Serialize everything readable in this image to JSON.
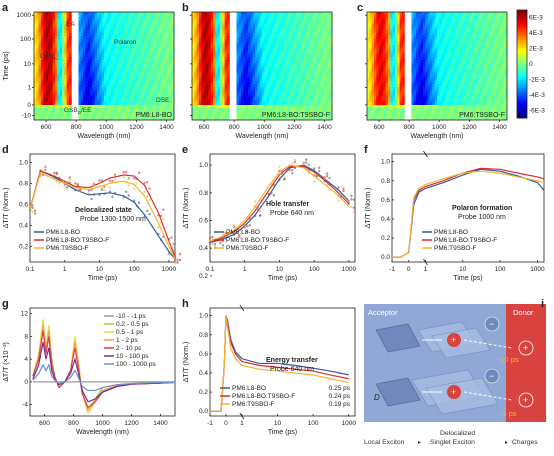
{
  "panels": {
    "a": {
      "label": "a",
      "sample": "PM6:L8-BO",
      "features": {
        "gsb_a": "GSB",
        "gsb_a_sub": "A",
        "ea": "EA",
        "gsb_d": "GSB",
        "gsb_d_sub": "D",
        "ee": "EE",
        "polaron": "Polaron",
        "dse": "DSE"
      },
      "ylabel": "Time (ps)",
      "xlabel": "Wavelength (nm)",
      "xticks": [
        "600",
        "800",
        "1000",
        "1200",
        "1400"
      ],
      "yticks": [
        "1000",
        "100",
        "10",
        "1",
        "0",
        "-10"
      ]
    },
    "b": {
      "label": "b",
      "sample": "PM6:L8-BO:T9SBO-F",
      "xlabel": "Wavelength (nm)",
      "xticks": [
        "600",
        "800",
        "1000",
        "1200",
        "1400"
      ],
      "yticks": [
        "1000",
        "100",
        "10",
        "1",
        "0",
        "-10"
      ]
    },
    "c": {
      "label": "c",
      "sample": "PM6:T9SBO-F",
      "xlabel": "Wavelength (nm)",
      "xticks": [
        "600",
        "800",
        "1000",
        "1200",
        "1400"
      ],
      "yticks": [
        "1000",
        "100",
        "10",
        "1",
        "0",
        "-10"
      ]
    },
    "colorbar": {
      "ticks": [
        "6E-3",
        "4E-3",
        "2E-3",
        "0",
        "-2E-3",
        "-4E-3",
        "-6E-3"
      ]
    },
    "d": {
      "label": "d",
      "ylabel": "ΔT/T (Norm.)",
      "xlabel": "Time (ps)",
      "title": "Delocalized state",
      "subtitle": "Probe 1300-1500 nm",
      "xticks": [
        "0.1",
        "1",
        "10",
        "100",
        "1000"
      ],
      "yticks": [
        "0.2",
        "0.4",
        "0.6",
        "0.8",
        "1.0"
      ],
      "legend": [
        "PM6:L8-BO",
        "PM6:L8-BO:T9SBO-F",
        "PM6:T9SBO-F"
      ]
    },
    "e": {
      "label": "e",
      "ylabel": "ΔT/T (Norm.)",
      "xlabel": "Time (ps)",
      "title": "Hole transfer",
      "subtitle": "Probe 640 nm",
      "xticks": [
        "0.1",
        "1",
        "10",
        "100",
        "1000"
      ],
      "yticks": [
        "0.2",
        "0.4",
        "0.6",
        "0.8",
        "1.0"
      ],
      "legend": [
        "PM6:L8-BO",
        "PM6:L8-BO:T9SBO-F",
        "PM6:T9SBO-F"
      ]
    },
    "f": {
      "label": "f",
      "ylabel": "ΔT/T (Norm.)",
      "xlabel": "Time (ps)",
      "title": "Polaron formation",
      "subtitle": "Probe 1000 nm",
      "xticks": [
        "-1",
        "0",
        "1",
        "10",
        "100",
        "1000"
      ],
      "yticks": [
        "0.0",
        "0.2",
        "0.4",
        "0.6",
        "0.8",
        "1.0"
      ],
      "legend": [
        "PM6:L8-BO",
        "PM6:L8-BO:T9SBO-F",
        "PM6:T9SBO-F"
      ]
    },
    "g": {
      "label": "g",
      "ylabel": "ΔT/T (×10⁻³)",
      "xlabel": "Wavelength (nm)",
      "xticks": [
        "600",
        "800",
        "1000",
        "1200",
        "1400"
      ],
      "yticks": [
        "-4",
        "0",
        "4",
        "8",
        "12"
      ],
      "legend": [
        "-10 - -1 ps",
        "0.2 - 0.5 ps",
        "0.5 - 1 ps",
        "1 - 2 ps",
        "2 - 10 ps",
        "10 - 100 ps",
        "100 - 1000 ps"
      ]
    },
    "h": {
      "label": "h",
      "ylabel": "ΔT/T (Norm.)",
      "xlabel": "Time (ps)",
      "title": "Energy transfer",
      "subtitle": "Probe 640 nm",
      "xticks": [
        "-1",
        "0",
        "1",
        "10",
        "100",
        "1000"
      ],
      "yticks": [
        "0.0",
        "0.2",
        "0.4",
        "0.6",
        "0.8",
        "1.0"
      ],
      "legend": [
        {
          "name": "PM6:L8-BO",
          "tau": "0.25 ps"
        },
        {
          "name": "PM6:L8-BO:T9SBO-F",
          "tau": "0.24 ps"
        },
        {
          "name": "PM6:T9SBO-F",
          "tau": "0.19 ps"
        }
      ]
    },
    "i": {
      "label": "i",
      "acceptor": "Acceptor",
      "donor": "Donor",
      "t_top": "~10 ps",
      "t_bot": "~5 ps",
      "d_label": "D",
      "bottom": [
        "Local Exciton",
        "Delocalized Singlet Exciton",
        "Charges"
      ]
    }
  },
  "colors": {
    "s1": "#2f5d9a",
    "s2": "#d62c3a",
    "s3": "#f2b632",
    "g": [
      "#9a9a9a",
      "#a6c94b",
      "#e7d94a",
      "#f4a545",
      "#d9434b",
      "#7a2a8a",
      "#6f8fcc"
    ]
  },
  "chart_data": [
    {
      "type": "line",
      "panel": "d",
      "x": [
        0.1,
        0.2,
        0.5,
        1,
        2,
        5,
        10,
        20,
        50,
        100,
        200,
        500,
        1000,
        1500
      ],
      "series": [
        {
          "name": "PM6:L8-BO",
          "values": [
            0.55,
            0.92,
            0.86,
            0.8,
            0.74,
            0.69,
            0.7,
            0.71,
            0.68,
            0.62,
            0.5,
            0.3,
            0.15,
            0.08
          ]
        },
        {
          "name": "PM6:L8-BO:T9SBO-F",
          "values": [
            0.55,
            0.92,
            0.87,
            0.82,
            0.77,
            0.76,
            0.8,
            0.85,
            0.88,
            0.87,
            0.78,
            0.52,
            0.25,
            0.1
          ]
        },
        {
          "name": "PM6:T9SBO-F",
          "values": [
            0.55,
            0.9,
            0.84,
            0.8,
            0.76,
            0.74,
            0.77,
            0.8,
            0.82,
            0.79,
            0.68,
            0.42,
            0.2,
            0.08
          ]
        }
      ],
      "xscale": "log"
    },
    {
      "type": "line",
      "panel": "e",
      "x": [
        0.1,
        0.2,
        0.5,
        1,
        2,
        5,
        10,
        20,
        50,
        100,
        200,
        500,
        1000
      ],
      "series": [
        {
          "name": "PM6:L8-BO",
          "values": [
            0.44,
            0.46,
            0.5,
            0.56,
            0.64,
            0.78,
            0.9,
            0.98,
            1.0,
            0.96,
            0.9,
            0.82,
            0.74
          ]
        },
        {
          "name": "PM6:L8-BO:T9SBO-F",
          "values": [
            0.44,
            0.47,
            0.52,
            0.58,
            0.67,
            0.82,
            0.93,
            0.99,
            0.99,
            0.95,
            0.89,
            0.8,
            0.72
          ]
        },
        {
          "name": "PM6:T9SBO-F",
          "values": [
            0.45,
            0.48,
            0.53,
            0.6,
            0.7,
            0.85,
            0.95,
            1.0,
            0.98,
            0.92,
            0.86,
            0.78,
            0.7
          ]
        }
      ],
      "xscale": "log"
    },
    {
      "type": "line",
      "panel": "f",
      "x": [
        -1,
        -0.5,
        0,
        0.3,
        0.6,
        1,
        3,
        10,
        30,
        100,
        300,
        1000,
        1500
      ],
      "series": [
        {
          "name": "PM6:L8-BO",
          "values": [
            0.0,
            0.0,
            0.05,
            0.55,
            0.68,
            0.72,
            0.78,
            0.86,
            0.92,
            0.9,
            0.85,
            0.78,
            0.7
          ]
        },
        {
          "name": "PM6:L8-BO:T9SBO-F",
          "values": [
            0.0,
            0.0,
            0.05,
            0.6,
            0.7,
            0.74,
            0.8,
            0.88,
            0.93,
            0.92,
            0.88,
            0.84,
            0.82
          ]
        },
        {
          "name": "PM6:T9SBO-F",
          "values": [
            0.0,
            0.0,
            0.05,
            0.62,
            0.72,
            0.76,
            0.82,
            0.88,
            0.9,
            0.88,
            0.84,
            0.8,
            0.78
          ]
        }
      ],
      "xscale": "split-log"
    },
    {
      "type": "line",
      "panel": "g",
      "x": [
        520,
        560,
        590,
        610,
        630,
        650,
        670,
        700,
        740,
        780,
        810,
        830,
        860,
        900,
        950,
        1000,
        1100,
        1200,
        1300,
        1400,
        1500
      ],
      "series": [
        {
          "name": "-10 - -1 ps",
          "values": [
            0,
            0,
            0,
            0,
            0,
            0,
            0,
            0,
            0,
            0,
            0,
            0,
            0,
            0,
            0,
            0,
            0,
            0,
            0,
            0,
            0
          ]
        },
        {
          "name": "0.2 - 0.5 ps",
          "values": [
            1,
            5,
            10,
            6,
            9,
            4,
            1,
            -1,
            0,
            2,
            7,
            4,
            -2,
            -5,
            -3,
            -1,
            -0.5,
            -0.3,
            -0.2,
            -0.2,
            -0.1
          ]
        },
        {
          "name": "0.5 - 1 ps",
          "values": [
            1,
            5,
            11,
            6,
            10,
            4,
            1,
            -1,
            0,
            2,
            8,
            4,
            -2,
            -5.5,
            -3.5,
            -1.5,
            -0.6,
            -0.3,
            -0.2,
            -0.2,
            -0.1
          ]
        },
        {
          "name": "1 - 2 ps",
          "values": [
            1,
            4,
            10,
            6,
            9,
            4,
            1,
            -1,
            0,
            2,
            7,
            4,
            -2,
            -5,
            -3.5,
            -1.5,
            -0.7,
            -0.4,
            -0.2,
            -0.2,
            -0.1
          ]
        },
        {
          "name": "2 - 10 ps",
          "values": [
            1,
            4,
            9,
            5,
            8,
            3,
            1,
            -1,
            0,
            2,
            6,
            3,
            -2,
            -4.5,
            -3.5,
            -1.8,
            -0.8,
            -0.4,
            -0.3,
            -0.2,
            -0.1
          ]
        },
        {
          "name": "10 - 100 ps",
          "values": [
            0.5,
            3,
            7,
            4,
            6,
            2,
            0.5,
            -0.5,
            0,
            1.5,
            4,
            2,
            -1.5,
            -3.5,
            -3,
            -1.8,
            -0.8,
            -0.4,
            -0.3,
            -0.2,
            -0.1
          ]
        },
        {
          "name": "100 - 1000 ps",
          "values": [
            0.3,
            1.5,
            3,
            2,
            3,
            1,
            0.3,
            -0.3,
            0,
            0.8,
            2,
            1,
            -0.8,
            -1.5,
            -1.5,
            -1,
            -0.5,
            -0.3,
            -0.2,
            -0.1,
            -0.1
          ]
        }
      ],
      "xlim": [
        500,
        1500
      ],
      "ylim": [
        -6,
        13
      ]
    },
    {
      "type": "line",
      "panel": "h",
      "x": [
        -1,
        -0.3,
        -0.1,
        0,
        0.1,
        0.3,
        0.6,
        1,
        3,
        10,
        30,
        100,
        300,
        1000
      ],
      "series": [
        {
          "name": "PM6:L8-BO",
          "values": [
            0.0,
            0.0,
            0.5,
            1.0,
            0.95,
            0.75,
            0.62,
            0.55,
            0.5,
            0.5,
            0.48,
            0.45,
            0.42,
            0.38
          ]
        },
        {
          "name": "PM6:L8-BO:T9SBO-F",
          "values": [
            0.0,
            0.0,
            0.5,
            1.0,
            0.92,
            0.72,
            0.6,
            0.52,
            0.48,
            0.46,
            0.44,
            0.42,
            0.38,
            0.34
          ]
        },
        {
          "name": "PM6:T9SBO-F",
          "values": [
            0.0,
            0.0,
            0.5,
            1.0,
            0.88,
            0.66,
            0.55,
            0.48,
            0.44,
            0.42,
            0.4,
            0.38,
            0.34,
            0.3
          ]
        }
      ],
      "xscale": "split-log"
    }
  ]
}
